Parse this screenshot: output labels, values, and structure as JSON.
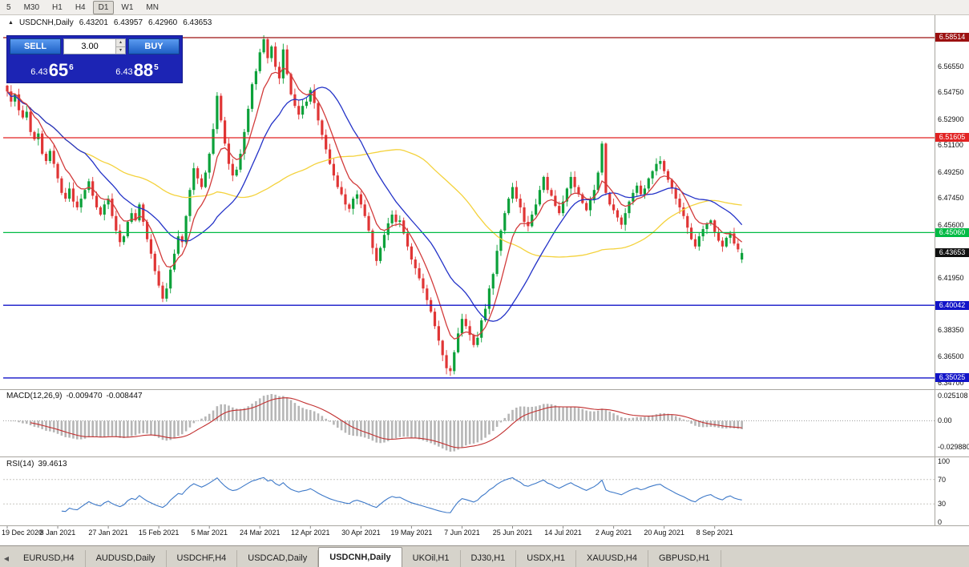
{
  "toolbar": {
    "timeframes": [
      {
        "label": "5",
        "active": false
      },
      {
        "label": "M30",
        "active": false
      },
      {
        "label": "H1",
        "active": false
      },
      {
        "label": "H4",
        "active": false
      },
      {
        "label": "D1",
        "active": true
      },
      {
        "label": "W1",
        "active": false
      },
      {
        "label": "MN",
        "active": false
      }
    ]
  },
  "header": {
    "toggle_icon": "▲",
    "symbol": "USDCNH,Daily",
    "open": "6.43201",
    "high": "6.43957",
    "low": "6.42960",
    "close": "6.43653"
  },
  "trade_panel": {
    "sell_label": "SELL",
    "buy_label": "BUY",
    "volume": "3.00",
    "sell_price": {
      "prefix": "6.43",
      "big": "65",
      "sup": "6"
    },
    "buy_price": {
      "prefix": "6.43",
      "big": "88",
      "sup": "5"
    }
  },
  "price_axis": {
    "ticks": [
      "6.56550",
      "6.54750",
      "6.52900",
      "6.51100",
      "6.49250",
      "6.47450",
      "6.45600",
      "6.41950",
      "6.38350",
      "6.36500",
      "6.34700"
    ],
    "levels": [
      {
        "value": "6.58514",
        "price": 6.58514,
        "color": "#9c1010"
      },
      {
        "value": "6.51605",
        "price": 6.51605,
        "color": "#e22222"
      },
      {
        "value": "6.45060",
        "price": 6.4506,
        "color": "#00bb44"
      },
      {
        "value": "6.40042",
        "price": 6.40042,
        "color": "#1214c8"
      },
      {
        "value": "6.35025",
        "price": 6.35025,
        "color": "#1214c8"
      }
    ],
    "current": {
      "value": "6.43653",
      "price": 6.43653,
      "color": "#101010"
    }
  },
  "macd": {
    "name": "MACD(12,26,9)",
    "value1": "-0.009470",
    "value2": "-0.008447",
    "ticks": [
      "0.025108",
      "0.00",
      "-0.029880"
    ]
  },
  "rsi": {
    "name": "RSI(14)",
    "value": "39.4613",
    "ticks": [
      "100",
      "70",
      "30",
      "0"
    ],
    "levels": [
      70,
      30
    ]
  },
  "tabs": {
    "scroll_left_icon": "◀",
    "items": [
      {
        "label": "EURUSD,H4",
        "active": false
      },
      {
        "label": "AUDUSD,Daily",
        "active": false
      },
      {
        "label": "USDCHF,H4",
        "active": false
      },
      {
        "label": "USDCAD,Daily",
        "active": false
      },
      {
        "label": "USDCNH,Daily",
        "active": true
      },
      {
        "label": "UKOil,H1",
        "active": false
      },
      {
        "label": "DJ30,H1",
        "active": false
      },
      {
        "label": "USDX,H1",
        "active": false
      },
      {
        "label": "XAUUSD,H4",
        "active": false
      },
      {
        "label": "GBPUSD,H1",
        "active": false
      }
    ]
  },
  "chart_data": {
    "type": "candlestick",
    "title": "USDCNH,Daily",
    "symbol": "USDCNH",
    "timeframe": "Daily",
    "y_range": [
      6.3447,
      6.589
    ],
    "bars_per_label": 13,
    "x_labels": [
      "19 Dec 2020",
      "8 Jan 2021",
      "27 Jan 2021",
      "15 Feb 2021",
      "5 Mar 2021",
      "24 Mar 2021",
      "12 Apr 2021",
      "30 Apr 2021",
      "19 May 2021",
      "7 Jun 2021",
      "25 Jun 2021",
      "14 Jul 2021",
      "2 Aug 2021",
      "20 Aug 2021",
      "8 Sep 2021"
    ],
    "closes": [
      6.548,
      6.541,
      6.546,
      6.535,
      6.53,
      6.534,
      6.52,
      6.515,
      6.519,
      6.505,
      6.5,
      6.507,
      6.498,
      6.488,
      6.478,
      6.474,
      6.481,
      6.472,
      6.468,
      6.474,
      6.48,
      6.486,
      6.476,
      6.468,
      6.463,
      6.47,
      6.474,
      6.462,
      6.452,
      6.444,
      6.448,
      6.458,
      6.464,
      6.459,
      6.47,
      6.458,
      6.446,
      6.436,
      6.424,
      6.414,
      6.405,
      6.412,
      6.425,
      6.436,
      6.448,
      6.444,
      6.462,
      6.48,
      6.495,
      6.488,
      6.482,
      6.492,
      6.505,
      6.522,
      6.545,
      6.528,
      6.512,
      6.498,
      6.49,
      6.494,
      6.505,
      6.52,
      6.536,
      6.553,
      6.562,
      6.575,
      6.584,
      6.571,
      6.579,
      6.565,
      6.557,
      6.577,
      6.56,
      6.546,
      6.538,
      6.532,
      6.538,
      6.541,
      6.549,
      6.54,
      6.528,
      6.518,
      6.508,
      6.498,
      6.49,
      6.482,
      6.477,
      6.47,
      6.467,
      6.474,
      6.477,
      6.47,
      6.462,
      6.452,
      6.44,
      6.431,
      6.44,
      6.449,
      6.457,
      6.463,
      6.458,
      6.459,
      6.45,
      6.441,
      6.432,
      6.426,
      6.419,
      6.412,
      6.404,
      6.396,
      6.386,
      6.376,
      6.366,
      6.357,
      6.355,
      6.368,
      6.381,
      6.391,
      6.386,
      6.38,
      6.373,
      6.378,
      6.39,
      6.398,
      6.412,
      6.422,
      6.438,
      6.452,
      6.464,
      6.474,
      6.482,
      6.474,
      6.468,
      6.458,
      6.455,
      6.463,
      6.47,
      6.48,
      6.489,
      6.48,
      6.476,
      6.469,
      6.464,
      6.472,
      6.481,
      6.489,
      6.482,
      6.477,
      6.471,
      6.466,
      6.473,
      6.48,
      6.492,
      6.512,
      6.478,
      6.47,
      6.466,
      6.461,
      6.456,
      6.464,
      6.472,
      6.478,
      6.483,
      6.477,
      6.481,
      6.488,
      6.493,
      6.498,
      6.5,
      6.493,
      6.487,
      6.481,
      6.474,
      6.468,
      6.462,
      6.454,
      6.446,
      6.441,
      6.448,
      6.453,
      6.457,
      6.459,
      6.451,
      6.445,
      6.441,
      6.447,
      6.45,
      6.443,
      6.439,
      6.4365
    ],
    "current_bar": {
      "open": 6.43201,
      "high": 6.43957,
      "low": 6.4296,
      "close": 6.43653
    },
    "colors": {
      "bull": "#0ca13a",
      "bear": "#e03535",
      "macd_hist": "#b6b6b6",
      "macd_signal": "#c23030",
      "rsi_line": "#3c78c8"
    },
    "moving_averages": [
      {
        "period": 55,
        "type": "sma",
        "color": "#f4d23c"
      },
      {
        "period": 21,
        "type": "sma",
        "color": "#2433c8"
      },
      {
        "period": 8,
        "type": "ema",
        "color": "#d23b3b"
      }
    ]
  }
}
